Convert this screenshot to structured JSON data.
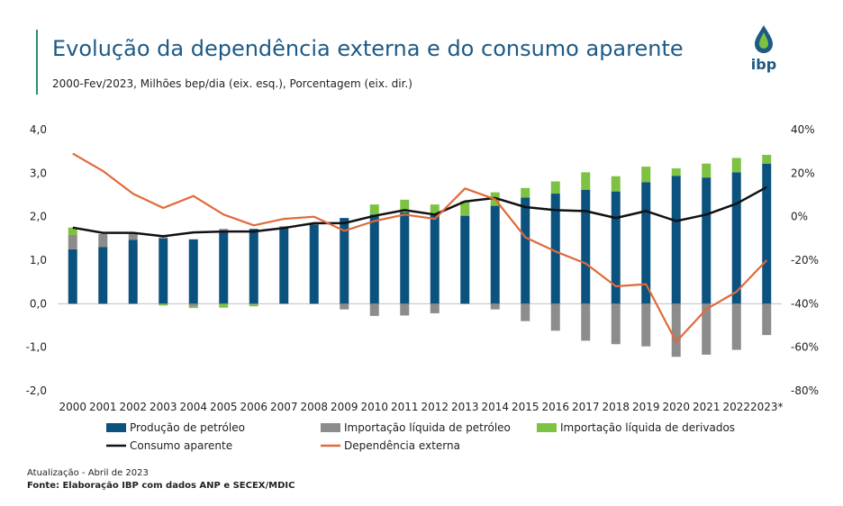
{
  "header": {
    "title": "Evolução da dependência externa e do consumo aparente",
    "subtitle": "2000-Fev/2023, Milhões bep/dia (eix. esq.), Porcentagem (eix. dir.)",
    "logo_text": "ibp"
  },
  "footer": {
    "update": "Atualização - Abril de 2023",
    "source": "Fonte: Elaboração IBP com dados ANP e SECEX/MDIC"
  },
  "colors": {
    "producao": "#0b527e",
    "importacao_petroleo": "#8c8c8c",
    "importacao_derivados": "#7dc242",
    "consumo": "#111111",
    "dependencia": "#e06a3b",
    "title": "#1d5a86",
    "accent": "#2e8b6e"
  },
  "chart_data": {
    "type": "bar",
    "categories": [
      "2000",
      "2001",
      "2002",
      "2003",
      "2004",
      "2005",
      "2006",
      "2007",
      "2008",
      "2009",
      "2010",
      "2011",
      "2012",
      "2013",
      "2014",
      "2015",
      "2016",
      "2017",
      "2018",
      "2019",
      "2020",
      "2021",
      "2022",
      "2023*"
    ],
    "left_axis": {
      "ylim": [
        -2.0,
        4.0
      ],
      "ticks": [
        "4,0",
        "3,0",
        "2,0",
        "1,0",
        "0,0",
        "-1,0",
        "-2,0"
      ],
      "tick_values": [
        4,
        3,
        2,
        1,
        0,
        -1,
        -2
      ]
    },
    "right_axis": {
      "ylim": [
        -80,
        40
      ],
      "ticks": [
        "40%",
        "20%",
        "0%",
        "-20%",
        "-40%",
        "-60%",
        "-80%"
      ],
      "tick_values": [
        40,
        20,
        0,
        -20,
        -40,
        -60,
        -80
      ]
    },
    "series": [
      {
        "name": "Produção de petróleo",
        "kind": "bar",
        "axis": "left",
        "values": [
          1.25,
          1.3,
          1.47,
          1.5,
          1.48,
          1.68,
          1.72,
          1.75,
          1.82,
          1.97,
          2.05,
          2.1,
          2.06,
          2.02,
          2.25,
          2.44,
          2.53,
          2.62,
          2.58,
          2.79,
          2.94,
          2.9,
          3.02,
          3.22
        ]
      },
      {
        "name": "Importação líquida de petróleo",
        "kind": "bar",
        "axis": "left",
        "values": [
          0.33,
          0.3,
          0.15,
          0.03,
          -0.06,
          0.04,
          -0.02,
          0.03,
          0.04,
          -0.13,
          -0.28,
          -0.27,
          -0.22,
          0.02,
          -0.13,
          -0.4,
          -0.62,
          -0.85,
          -0.93,
          -0.98,
          -1.22,
          -1.17,
          -1.06,
          -0.72
        ]
      },
      {
        "name": "Importação líquida de derivados",
        "kind": "bar",
        "axis": "left",
        "values": [
          0.17,
          0.0,
          0.02,
          -0.04,
          -0.04,
          -0.09,
          -0.04,
          0.0,
          0.0,
          0.0,
          0.23,
          0.29,
          0.22,
          0.32,
          0.31,
          0.22,
          0.28,
          0.4,
          0.35,
          0.36,
          0.17,
          0.32,
          0.33,
          0.2
        ]
      },
      {
        "name": "Consumo aparente",
        "kind": "line",
        "axis": "left",
        "values": [
          1.75,
          1.63,
          1.63,
          1.55,
          1.64,
          1.66,
          1.66,
          1.74,
          1.85,
          1.85,
          2.02,
          2.15,
          2.05,
          2.35,
          2.43,
          2.22,
          2.15,
          2.13,
          1.97,
          2.13,
          1.9,
          2.05,
          2.3,
          2.68
        ]
      },
      {
        "name": "Dependência externa",
        "kind": "line",
        "axis": "right",
        "values": [
          29,
          21,
          10.5,
          4,
          9.5,
          1,
          -4,
          -1,
          0,
          -6.5,
          -2,
          1,
          -1,
          13,
          8,
          -9.5,
          -16,
          -21.5,
          -32,
          -31,
          -57.5,
          -42.5,
          -34.5,
          -20
        ]
      }
    ],
    "grid": false,
    "legend": {
      "placement": "bottom",
      "items": [
        "Produção de petróleo",
        "Importação líquida de petróleo",
        "Importação líquida de derivados",
        "Consumo aparente",
        "Dependência externa"
      ]
    }
  }
}
